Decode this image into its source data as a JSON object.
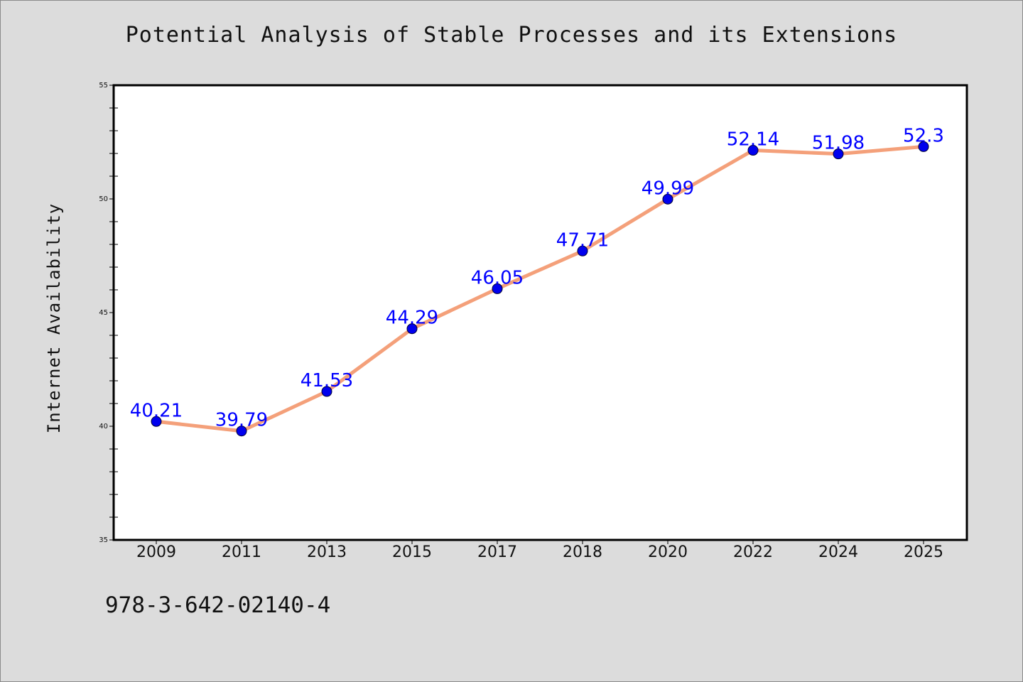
{
  "chart_data": {
    "type": "line",
    "title": "Potential Analysis of Stable Processes and its Extensions",
    "xlabel": "",
    "ylabel": "Internet Availability",
    "categories": [
      "2009",
      "2011",
      "2013",
      "2015",
      "2017",
      "2018",
      "2020",
      "2022",
      "2024",
      "2025"
    ],
    "series": [
      {
        "values": [
          40.21,
          39.79,
          41.53,
          44.29,
          46.05,
          47.71,
          49.99,
          52.14,
          51.98,
          52.3
        ],
        "data_labels": [
          "40.21",
          "39.79",
          "41.53",
          "44.29",
          "46.05",
          "47.71",
          "49.99",
          "52.14",
          "51.98",
          "52.3"
        ],
        "line_color": "#f4a07a",
        "marker_color": "#0000ee",
        "label_color": "#0000ff"
      }
    ],
    "ylim": [
      35,
      55
    ],
    "yticks": [
      "35",
      "40",
      "45",
      "50",
      "55"
    ],
    "grid": false,
    "legend": "none"
  },
  "footnote": "978-3-642-02140-4",
  "colors": {
    "background": "#dcdcdc",
    "plot_background": "#ffffff"
  }
}
